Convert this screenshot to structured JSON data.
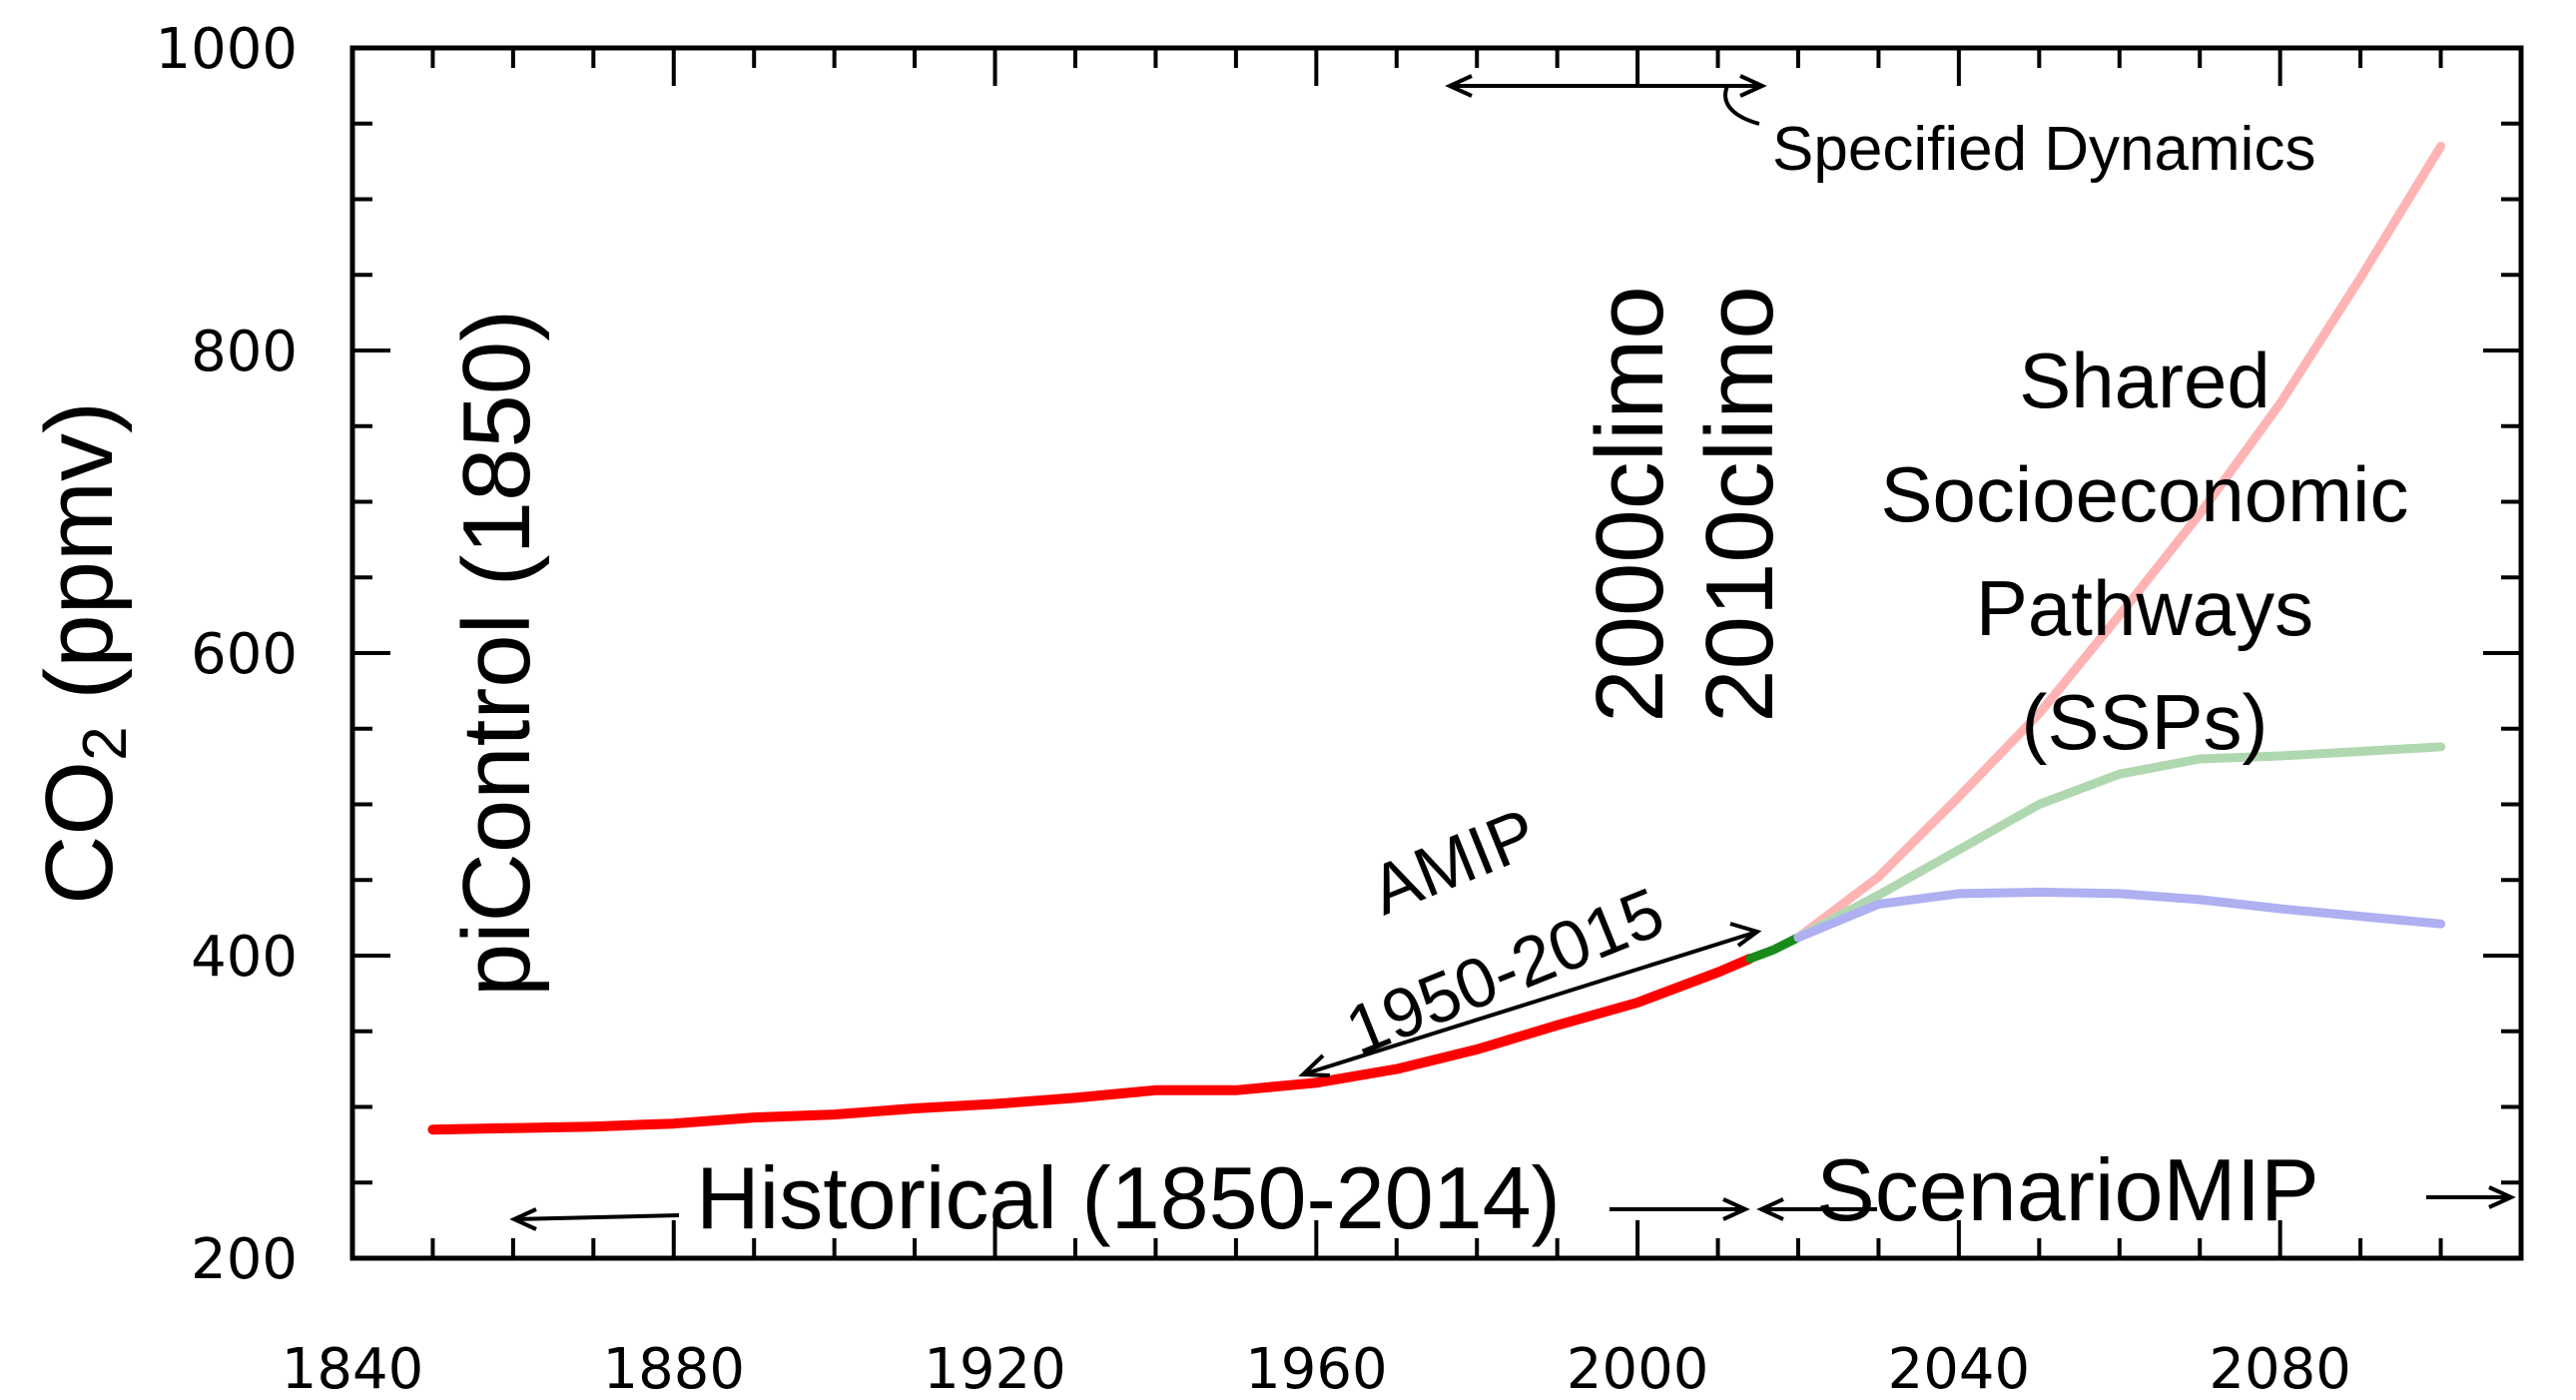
{
  "chart_data": {
    "type": "line",
    "xlabel": "",
    "ylabel_main": "CO",
    "ylabel_sub": "2",
    "ylabel_unit": " (ppmv)",
    "xlim": [
      1840,
      2110
    ],
    "ylim": [
      200,
      1000
    ],
    "x_ticks": [
      1840,
      1880,
      1920,
      1960,
      2000,
      2040,
      2080
    ],
    "y_ticks": [
      200,
      400,
      600,
      800,
      1000
    ],
    "x_minor_step": 10,
    "y_minor_step": 50,
    "grid": false,
    "series": [
      {
        "color": "#ff0000",
        "x": [
          1850,
          1860,
          1870,
          1880,
          1890,
          1900,
          1910,
          1920,
          1930,
          1940,
          1950,
          1960,
          1970,
          1980,
          1990,
          2000,
          2010,
          2014
        ],
        "y": [
          285,
          286,
          287,
          289,
          293,
          295,
          299,
          302,
          306,
          311,
          311,
          316,
          325,
          338,
          354,
          369,
          389,
          398
        ]
      },
      {
        "color": "#1a8a1a",
        "x": [
          2014,
          2017,
          2020
        ],
        "y": [
          398,
          404,
          412
        ]
      },
      {
        "color": "#ffb3b3",
        "x": [
          2020,
          2030,
          2040,
          2050,
          2060,
          2070,
          2080,
          2090,
          2100
        ],
        "y": [
          412,
          452,
          505,
          560,
          625,
          692,
          765,
          848,
          935
        ]
      },
      {
        "color": "#b0d8b0",
        "x": [
          2020,
          2030,
          2040,
          2050,
          2060,
          2070,
          2080,
          2090,
          2100
        ],
        "y": [
          412,
          440,
          470,
          500,
          520,
          530,
          532,
          535,
          538
        ]
      },
      {
        "color": "#aeb0f2",
        "x": [
          2020,
          2030,
          2040,
          2050,
          2060,
          2070,
          2080,
          2090,
          2100
        ],
        "y": [
          412,
          434,
          441,
          442,
          441,
          437,
          431,
          426,
          421
        ]
      }
    ],
    "annotations": {
      "picontrol": "piControl (1850)",
      "climo2000": "2000climo",
      "climo2010": "2010climo",
      "ssp_line1": "Shared",
      "ssp_line2": "Socioeconomic",
      "ssp_line3": "Pathways",
      "ssp_line4": "(SSPs)",
      "amip_line1": "AMIP",
      "amip_line2": "1950-2015",
      "specified_dynamics": "Specified Dynamics",
      "historical": "Historical (1850-2014)",
      "scenariomip": "ScenarioMIP"
    }
  }
}
